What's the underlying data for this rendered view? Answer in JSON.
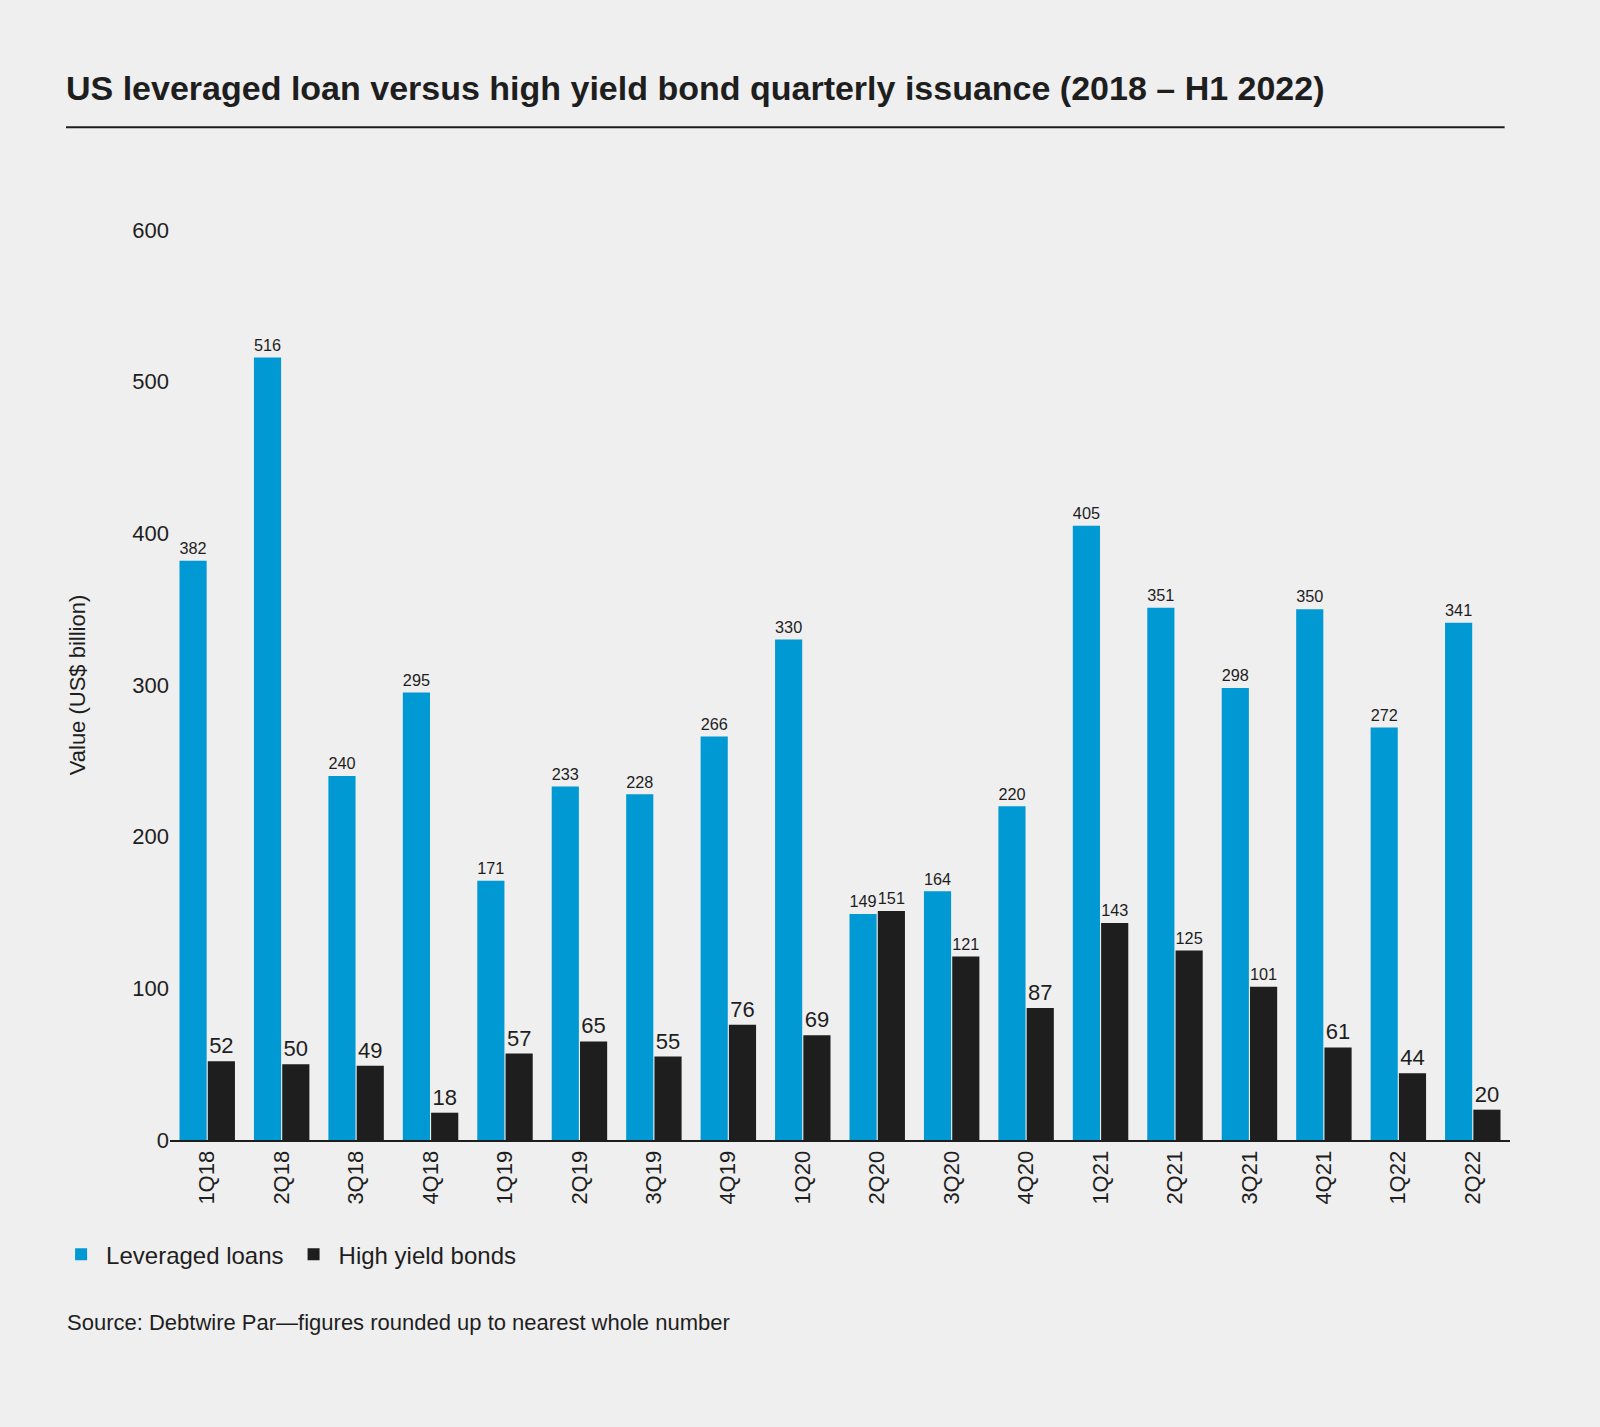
{
  "chart_data": {
    "type": "bar",
    "title": "US leveraged loan versus high yield bond quarterly issuance (2018 – H1 2022)",
    "y_label": "Value (US$ billion)",
    "categories": [
      "1Q18",
      "2Q18",
      "3Q18",
      "4Q18",
      "1Q19",
      "2Q19",
      "3Q19",
      "4Q19",
      "1Q20",
      "2Q20",
      "3Q20",
      "4Q20",
      "1Q21",
      "2Q21",
      "3Q21",
      "4Q21",
      "1Q22",
      "2Q22"
    ],
    "series": [
      {
        "name": "Leveraged loans",
        "color": "#0099d4",
        "values": [
          382,
          516,
          240,
          295,
          171,
          233,
          228,
          266,
          330,
          149,
          164,
          220,
          405,
          351,
          298,
          350,
          272,
          341
        ]
      },
      {
        "name": "High yield bonds",
        "color": "#1e1e1e",
        "values": [
          52,
          50,
          49,
          18,
          57,
          65,
          55,
          76,
          69,
          151,
          121,
          87,
          143,
          125,
          101,
          61,
          44,
          20
        ]
      }
    ],
    "ylim": [
      0,
      600
    ],
    "yticks": [
      0,
      100,
      200,
      300,
      400,
      500,
      600
    ],
    "grid": false,
    "legend": "bottom left",
    "data_labels": true,
    "annotations": [
      "Source: Debtwire Par—figures rounded up to nearest whole number"
    ]
  }
}
